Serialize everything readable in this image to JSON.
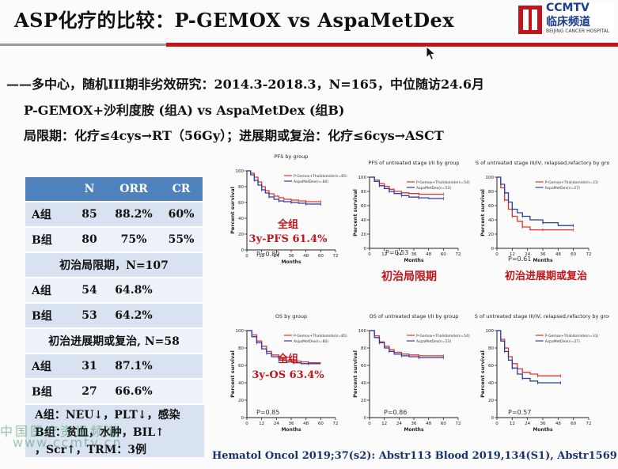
{
  "title": "ASP化疗的比较：P-GEMOX vs AspaMetDex",
  "logo": {
    "brand": "CCMTV",
    "cn": "临床频道",
    "en": "BEIJING CANCER HOSPITAL"
  },
  "headlines": [
    "——多中心，随机III期非劣效研究：2014.3-2018.3，N=165，中位随访24.6月",
    "P-GEMOX+沙利度胺 (组A)    vs    AspaMetDex (组B)",
    "局限期：化疗≤4cys→RT（56Gy）；进展期或复治：化疗≤6cys→ASCT"
  ],
  "table": {
    "headers": [
      "",
      "N",
      "ORR",
      "CR"
    ],
    "rows": [
      {
        "type": "data",
        "cells": [
          "A组",
          "85",
          "88.2%",
          "60%"
        ]
      },
      {
        "type": "data",
        "cells": [
          "B组",
          "80",
          "75%",
          "55%"
        ]
      },
      {
        "type": "section",
        "label": "初治局限期，N=107"
      },
      {
        "type": "data",
        "cells": [
          "A组",
          "54",
          "64.8%",
          ""
        ]
      },
      {
        "type": "data",
        "cells": [
          "B组",
          "53",
          "64.2%",
          ""
        ]
      },
      {
        "type": "section",
        "label": "初治进展期或复治, N=58"
      },
      {
        "type": "data",
        "cells": [
          "A组",
          "31",
          "87.1%",
          ""
        ]
      },
      {
        "type": "data",
        "cells": [
          "B组",
          "27",
          "66.6%",
          ""
        ]
      }
    ]
  },
  "notes": [
    "A组：NEU↓，PLT↓，感染",
    "B组：贫血，水肿，BIL↑",
    "，Scr↑，TRM：3例"
  ],
  "references": "Hematol Oncol 2019;37(s2): Abstr113      Blood 2019,134(S1), Abstr1569",
  "watermark": {
    "line1": "中国医疗资讯频道",
    "line2": "www.ccmtv.cn"
  },
  "colors": {
    "accent_red": "#c0151b",
    "table_header": "#4f81bd",
    "series_a": "#e8322a",
    "series_b": "#2b3ea8"
  },
  "chart_data": [
    {
      "type": "line",
      "title": "PFS by group",
      "xlabel": "Months",
      "ylabel": "Percent survival",
      "x_ticks": [
        0,
        12,
        24,
        36,
        48,
        60,
        72
      ],
      "y_ticks": [
        0,
        20,
        40,
        60,
        80,
        100
      ],
      "xlim": [
        0,
        72
      ],
      "ylim": [
        0,
        100
      ],
      "legend": [
        "P-Gemox+Thalidomide(n=85)",
        "AspaMetDex(n=80)"
      ],
      "annotations": [
        "P=0.89",
        "全组",
        "3y-PFS 61.4%"
      ],
      "series": [
        {
          "name": "P-Gemox+Thalidomide",
          "x": [
            0,
            3,
            6,
            9,
            12,
            15,
            18,
            22,
            26,
            30,
            36,
            42,
            48,
            54,
            60
          ],
          "y": [
            100,
            97,
            92,
            86,
            80,
            75,
            71,
            68,
            66,
            64,
            63,
            62,
            61,
            61,
            61
          ]
        },
        {
          "name": "AspaMetDex",
          "x": [
            0,
            3,
            6,
            9,
            12,
            15,
            18,
            22,
            26,
            30,
            36,
            42,
            48,
            54,
            60
          ],
          "y": [
            100,
            95,
            88,
            82,
            76,
            72,
            67,
            64,
            62,
            61,
            60,
            59,
            58,
            58,
            58
          ]
        }
      ]
    },
    {
      "type": "line",
      "title": "PFS of untreated stage I/II by group",
      "xlabel": "Months",
      "ylabel": "Percent survival",
      "x_ticks": [
        0,
        12,
        24,
        36,
        48,
        60,
        72
      ],
      "y_ticks": [
        0,
        20,
        40,
        60,
        80,
        100
      ],
      "xlim": [
        0,
        72
      ],
      "ylim": [
        0,
        100
      ],
      "legend": [
        "P-Gemox+Thalidomide(n=54)",
        "AspaMetDex(n=53)"
      ],
      "annotations": [
        "P=0.53",
        "初治局限期"
      ],
      "series": [
        {
          "name": "P-Gemox+Thalidomide",
          "x": [
            0,
            4,
            8,
            12,
            16,
            20,
            26,
            32,
            40,
            48,
            60
          ],
          "y": [
            100,
            96,
            91,
            87,
            83,
            80,
            78,
            77,
            76,
            76,
            76
          ]
        },
        {
          "name": "AspaMetDex",
          "x": [
            0,
            4,
            8,
            12,
            16,
            20,
            26,
            32,
            40,
            48,
            60
          ],
          "y": [
            100,
            94,
            88,
            84,
            80,
            77,
            74,
            72,
            71,
            70,
            70
          ]
        }
      ]
    },
    {
      "type": "line",
      "title": "PFS of untreated stage III/IV, relapsed,refactory by group",
      "xlabel": "Months",
      "ylabel": "Percent survival",
      "x_ticks": [
        0,
        12,
        24,
        36,
        48,
        60,
        72
      ],
      "y_ticks": [
        0,
        20,
        40,
        60,
        80,
        100
      ],
      "xlim": [
        0,
        72
      ],
      "ylim": [
        0,
        100
      ],
      "legend": [
        "P-Gemox+Thalidomide(n=31)",
        "AspaMetDex(n=27)"
      ],
      "annotations": [
        "P=0.61",
        "初治进展期或复治"
      ],
      "series": [
        {
          "name": "P-Gemox+Thalidomide",
          "x": [
            0,
            3,
            6,
            9,
            12,
            16,
            20,
            26,
            36,
            48,
            60
          ],
          "y": [
            100,
            85,
            68,
            55,
            45,
            38,
            30,
            26,
            26,
            26,
            26
          ]
        },
        {
          "name": "AspaMetDex",
          "x": [
            0,
            3,
            6,
            9,
            12,
            16,
            20,
            26,
            36,
            48,
            60
          ],
          "y": [
            100,
            90,
            78,
            65,
            55,
            50,
            45,
            40,
            36,
            32,
            32
          ]
        }
      ]
    },
    {
      "type": "line",
      "title": "OS by group",
      "xlabel": "Months",
      "ylabel": "Percent survival",
      "x_ticks": [
        0,
        12,
        24,
        36,
        48,
        60,
        72
      ],
      "y_ticks": [
        0,
        20,
        40,
        60,
        80,
        100
      ],
      "xlim": [
        0,
        72
      ],
      "ylim": [
        0,
        100
      ],
      "legend": [
        "P-Gemox+Thalidomide(n=85)",
        "AspaMetDex(n=80)"
      ],
      "annotations": [
        "P=0.85",
        "全组",
        "3y-OS 63.4%"
      ],
      "series": [
        {
          "name": "P-Gemox+Thalidomide",
          "x": [
            0,
            4,
            8,
            12,
            16,
            20,
            26,
            32,
            38,
            44,
            50,
            60
          ],
          "y": [
            100,
            95,
            88,
            82,
            76,
            72,
            68,
            66,
            65,
            64,
            63,
            63
          ]
        },
        {
          "name": "AspaMetDex",
          "x": [
            0,
            4,
            8,
            12,
            16,
            20,
            26,
            32,
            38,
            44,
            50,
            60
          ],
          "y": [
            100,
            93,
            86,
            79,
            74,
            70,
            66,
            64,
            63,
            62,
            62,
            62
          ]
        }
      ]
    },
    {
      "type": "line",
      "title": "OS of untreated stage I/II by group",
      "xlabel": "Months",
      "ylabel": "Percent survival",
      "x_ticks": [
        0,
        12,
        24,
        36,
        48,
        60,
        72
      ],
      "y_ticks": [
        0,
        20,
        40,
        60,
        80,
        100
      ],
      "xlim": [
        0,
        72
      ],
      "ylim": [
        0,
        100
      ],
      "legend": [
        "P-Gemox+Thalidomide(n=54)",
        "AspaMetDex(n=53)"
      ],
      "annotations": [
        "P=0.86"
      ],
      "series": [
        {
          "name": "P-Gemox+Thalidomide",
          "x": [
            0,
            4,
            8,
            12,
            16,
            20,
            26,
            32,
            40,
            48,
            60
          ],
          "y": [
            100,
            94,
            87,
            82,
            78,
            75,
            73,
            72,
            71,
            71,
            71
          ]
        },
        {
          "name": "AspaMetDex",
          "x": [
            0,
            4,
            8,
            12,
            16,
            20,
            26,
            32,
            40,
            48,
            60
          ],
          "y": [
            100,
            92,
            86,
            80,
            76,
            73,
            71,
            70,
            69,
            69,
            69
          ]
        }
      ]
    },
    {
      "type": "line",
      "title": "OS of untreated stage III/IV, relapsed,refactory by group",
      "xlabel": "Months",
      "ylabel": "Percent survival",
      "x_ticks": [
        0,
        12,
        24,
        36,
        48,
        60,
        72
      ],
      "y_ticks": [
        0,
        20,
        40,
        60,
        80,
        100
      ],
      "xlim": [
        0,
        72
      ],
      "ylim": [
        0,
        100
      ],
      "legend": [
        "P-Gemox+Thalidomide(n=31)",
        "AspaMetDex(n=27)"
      ],
      "annotations": [
        "P=0.57"
      ],
      "series": [
        {
          "name": "P-Gemox+Thalidomide",
          "x": [
            0,
            3,
            6,
            9,
            12,
            16,
            20,
            26,
            32,
            40,
            50
          ],
          "y": [
            100,
            90,
            80,
            70,
            62,
            56,
            52,
            50,
            48,
            48,
            48
          ]
        },
        {
          "name": "AspaMetDex",
          "x": [
            0,
            3,
            6,
            9,
            12,
            16,
            20,
            26,
            32,
            40,
            50
          ],
          "y": [
            100,
            88,
            76,
            66,
            57,
            50,
            45,
            42,
            40,
            40,
            40
          ]
        }
      ]
    }
  ]
}
